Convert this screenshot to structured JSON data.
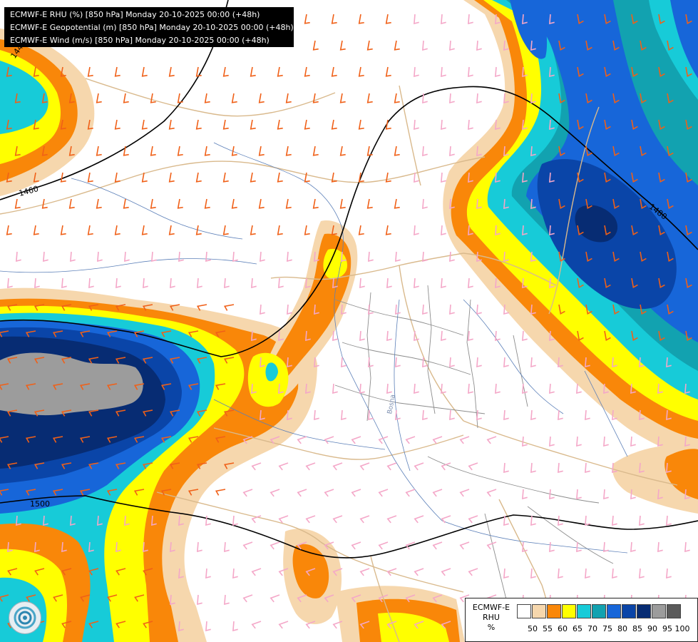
{
  "header": {
    "lines": [
      "ECMWF-E RHU (%) [850 hPa] Monday 20-10-2025 00:00 (+48h)",
      "ECMWF-E Geopotential (m) [850 hPa] Monday 20-10-2025 00:00 (+48h)",
      "ECMWF-E Wind (m/s) [850 hPa] Monday 20-10-2025 00:00 (+48h)"
    ]
  },
  "map": {
    "contour_labels": [
      "1440",
      "1460",
      "1480",
      "1500"
    ],
    "place_label": "Bosna"
  },
  "legend": {
    "title_line1": "ECMWF-E",
    "title_line2": "RHU",
    "unit": "%",
    "colors": [
      "#ffffff",
      "#f6d7ad",
      "#f98709",
      "#ffff00",
      "#17cbd8",
      "#12a2b0",
      "#1766d9",
      "#0a45a8",
      "#072c73",
      "#9c9c9c",
      "#5a5a5a"
    ],
    "labels": [
      "50",
      "55",
      "60",
      "65",
      "70",
      "75",
      "80",
      "85",
      "90",
      "95",
      "100"
    ]
  }
}
